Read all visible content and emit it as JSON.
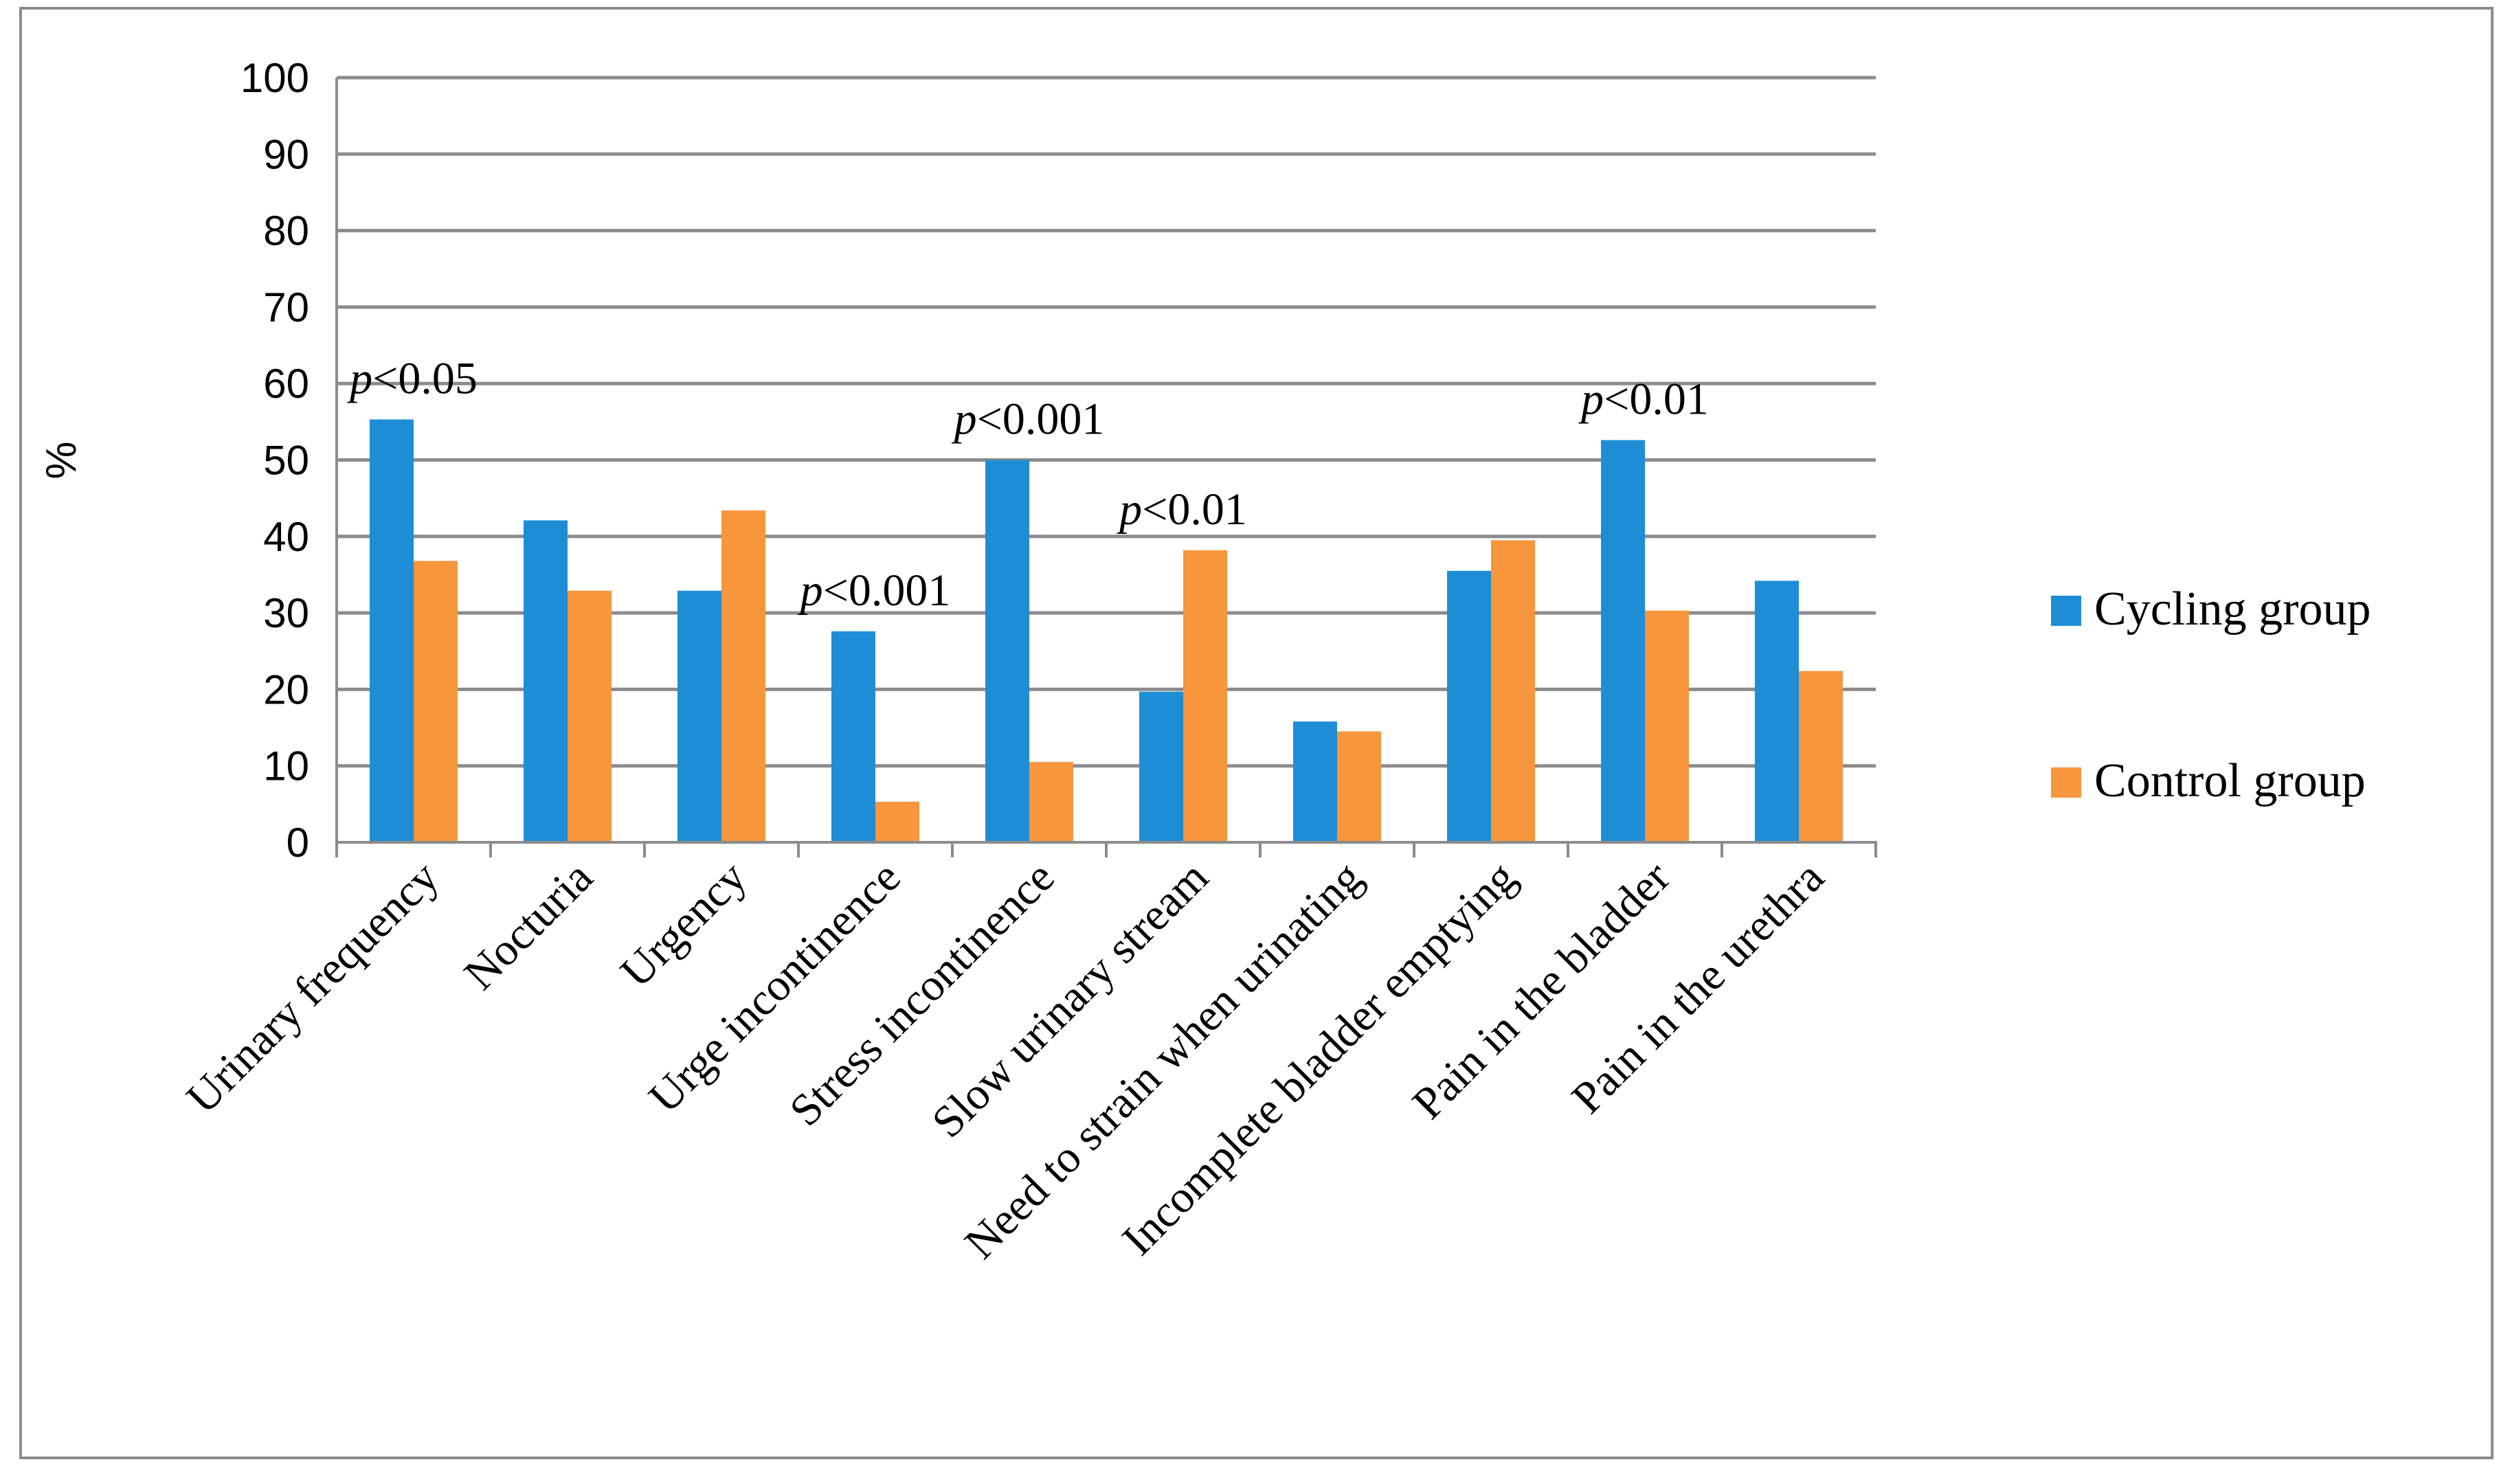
{
  "chart_data": {
    "type": "bar",
    "title": "",
    "xlabel": "",
    "ylabel": "%",
    "ylim": [
      0,
      100
    ],
    "yticks": [
      0,
      10,
      20,
      30,
      40,
      50,
      60,
      70,
      80,
      90,
      100
    ],
    "grid": true,
    "legend_position": "right",
    "categories": [
      "Urinary frequency",
      "Nocturia",
      "Urgency",
      "Urge incontinence",
      "Stress incontinence",
      "Slow urinary stream",
      "Need to strain when urinating",
      "Incomplete bladder emptying",
      "Pain in the bladder",
      "Pain in the urethra"
    ],
    "series": [
      {
        "name": "Cycling group",
        "color": "#1f8dd6",
        "values": [
          55.3,
          42.1,
          32.9,
          27.6,
          50.0,
          19.7,
          15.8,
          35.5,
          52.6,
          34.2
        ]
      },
      {
        "name": "Control group",
        "color": "#f7963c",
        "values": [
          36.8,
          32.9,
          43.4,
          5.3,
          10.5,
          38.2,
          14.5,
          39.5,
          30.3,
          22.4
        ]
      }
    ],
    "annotations": [
      {
        "category_index": 0,
        "italic": "p",
        "text": "<0.05"
      },
      {
        "category_index": 3,
        "italic": "p",
        "text": "<0.001"
      },
      {
        "category_index": 4,
        "italic": "p",
        "text": "<0.001"
      },
      {
        "category_index": 5,
        "italic": "p",
        "text": "<0.01"
      },
      {
        "category_index": 8,
        "italic": "p",
        "text": "<0.01"
      }
    ]
  }
}
